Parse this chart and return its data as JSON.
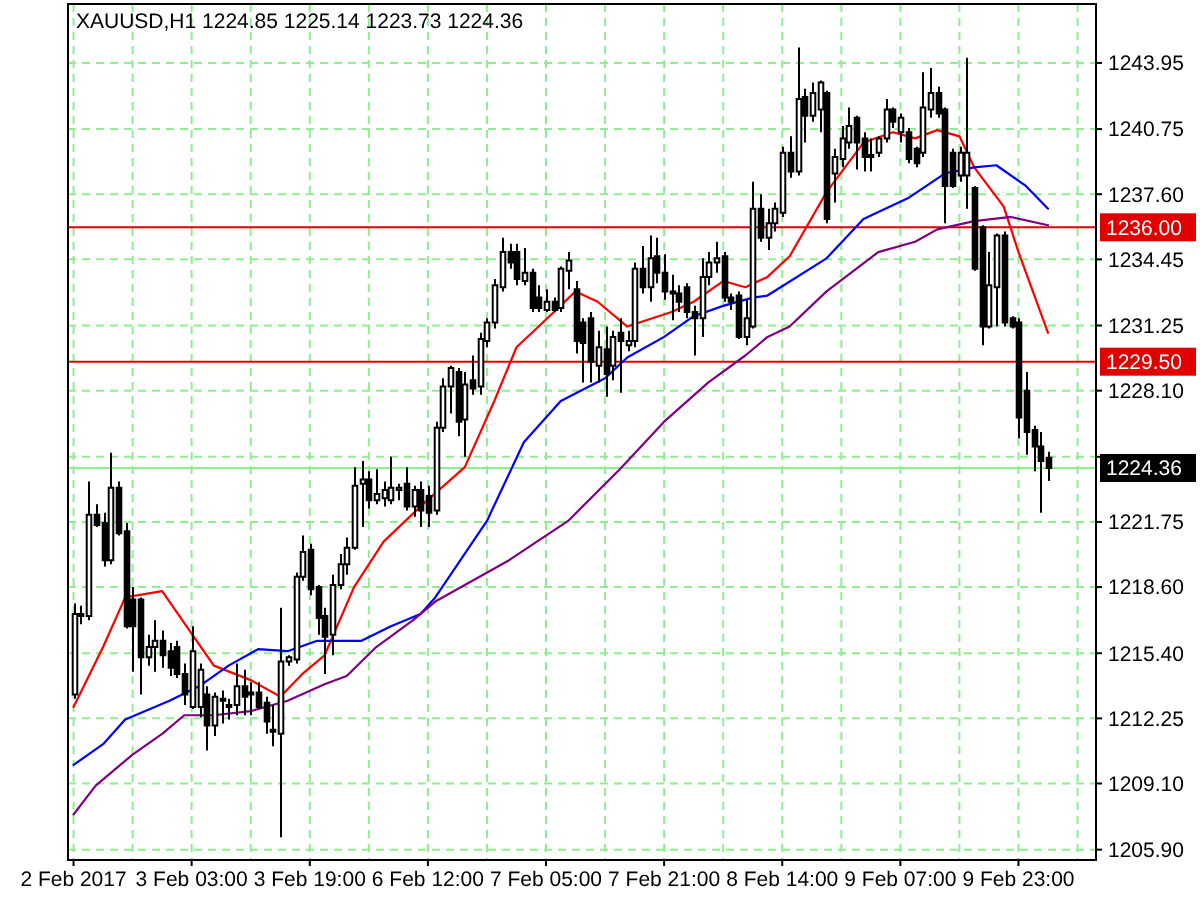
{
  "chart_data": {
    "type": "candlestick",
    "title": "XAUUSD,H1 1224.85 1225.14 1223.73 1224.36",
    "categories": [
      "2 Feb 2017",
      null,
      null,
      null,
      null,
      null,
      null,
      null,
      null,
      null,
      null,
      null,
      null,
      null,
      null,
      null,
      "3 Feb 03:00",
      null,
      null,
      null,
      null,
      null,
      null,
      null,
      null,
      null,
      null,
      null,
      null,
      null,
      null,
      null,
      "3 Feb 19:00",
      null,
      null,
      null,
      null,
      null,
      null,
      null,
      null,
      null,
      null,
      null,
      null,
      null,
      null,
      null,
      "6 Feb 12:00",
      null,
      null,
      null,
      null,
      null,
      null,
      null,
      null,
      null,
      null,
      null,
      null,
      null,
      null,
      null,
      "7 Feb 05:00",
      null,
      null,
      null,
      null,
      null,
      null,
      null,
      null,
      null,
      null,
      null,
      null,
      null,
      null,
      null,
      "7 Feb 21:00",
      null,
      null,
      null,
      null,
      null,
      null,
      null,
      null,
      null,
      null,
      null,
      null,
      null,
      null,
      null,
      "8 Feb 14:00",
      null,
      null,
      null,
      null,
      null,
      null,
      null,
      null,
      null,
      null,
      null,
      null,
      null,
      null,
      null,
      "9 Feb 07:00",
      null,
      null,
      null,
      null,
      null,
      null,
      null,
      null,
      null,
      null,
      null,
      null,
      null,
      null,
      null,
      "9 Feb 23:00",
      null,
      null,
      null,
      null
    ],
    "ylim": [
      1205.4,
      1246.8
    ],
    "yticks": [
      1243.95,
      1240.75,
      {
        "value": 1237.6,
        "label": "1237.60"
      },
      1234.45,
      1231.25,
      {
        "value": 1228.1,
        "label": "1228.10"
      },
      {
        "value": 1224.9,
        "label": null
      },
      1221.75,
      {
        "value": 1218.6,
        "label": "1218.60"
      },
      {
        "value": 1215.4,
        "label": "1215.40"
      },
      1212.25,
      {
        "value": 1209.1,
        "label": "1209.10"
      },
      {
        "value": 1205.9,
        "label": "1205.90"
      }
    ],
    "grid": true,
    "ref_lines": [
      {
        "axis": "y",
        "value": 1236.0,
        "label": "1236.00",
        "color": "#e00000"
      },
      {
        "axis": "y",
        "value": 1229.5,
        "label": "1229.50",
        "color": "#e00000"
      },
      {
        "axis": "y",
        "value": 1224.36,
        "label": "1224.36",
        "color": "#90ee90"
      }
    ],
    "series": [
      {
        "type": "line",
        "color": "#ff0000",
        "values": [
          1212.8,
          null,
          null,
          null,
          1215.7,
          null,
          null,
          1218.1,
          null,
          null,
          null,
          null,
          1218.4,
          null,
          null,
          null,
          null,
          null,
          null,
          1214.8,
          null,
          null,
          null,
          null,
          1214.1,
          null,
          null,
          null,
          1213.3,
          null,
          null,
          1214.4,
          null,
          null,
          1215.3,
          null,
          null,
          null,
          1218.6,
          null,
          null,
          null,
          1220.8,
          null,
          null,
          null,
          null,
          1222.5,
          null,
          null,
          null,
          null,
          null,
          1224.4,
          null,
          null,
          null,
          1227.6,
          null,
          null,
          1230.2,
          null,
          null,
          1231.2,
          null,
          null,
          null,
          null,
          1232.9,
          null,
          null,
          1232.4,
          null,
          null,
          null,
          1231.2,
          null,
          null,
          null,
          null,
          null,
          1231.9,
          null,
          null,
          1232.4,
          null,
          null,
          null,
          1233.4,
          null,
          null,
          1233.1,
          null,
          null,
          1233.6,
          null,
          null,
          1234.6,
          null,
          null,
          null,
          null,
          1237.7,
          null,
          null,
          null,
          null,
          1240.1,
          null,
          null,
          null,
          1240.6,
          null,
          null,
          1240.3,
          null,
          null,
          1240.7,
          null,
          null,
          1240.4,
          null,
          1238.9,
          null,
          null,
          null,
          1237.0,
          null,
          1234.8,
          null,
          null,
          null,
          1230.9
        ]
      },
      {
        "type": "line",
        "color": "#0000ff",
        "values": [
          1210.0,
          null,
          null,
          null,
          1211.0,
          null,
          null,
          1212.2,
          null,
          null,
          null,
          null,
          null,
          1213.1,
          null,
          null,
          null,
          1213.8,
          null,
          null,
          null,
          1214.8,
          null,
          null,
          1215.4,
          1215.6,
          null,
          null,
          null,
          1215.5,
          null,
          null,
          null,
          1216.0,
          null,
          null,
          null,
          null,
          null,
          1216.0,
          null,
          null,
          null,
          1216.7,
          null,
          null,
          null,
          1217.3,
          null,
          1218.1,
          null,
          null,
          null,
          null,
          null,
          null,
          1221.8,
          null,
          null,
          null,
          null,
          1225.6,
          null,
          null,
          null,
          null,
          1227.6,
          null,
          null,
          null,
          null,
          null,
          1228.7,
          null,
          null,
          1229.7,
          null,
          null,
          null,
          null,
          1230.7,
          null,
          null,
          null,
          1231.7,
          null,
          null,
          null,
          1232.2,
          null,
          null,
          null,
          1232.6,
          null,
          1232.7,
          null,
          null,
          null,
          null,
          null,
          null,
          null,
          1234.5,
          null,
          null,
          null,
          null,
          1236.4,
          null,
          null,
          null,
          null,
          null,
          1237.4,
          null,
          null,
          null,
          null,
          1238.6,
          null,
          null,
          null,
          1238.9,
          null,
          null,
          1239.0,
          null,
          null,
          null,
          1238.0,
          null,
          null,
          1236.9
        ]
      },
      {
        "type": "line",
        "color": "#800080",
        "values": [
          1207.6,
          null,
          null,
          1209.0,
          null,
          null,
          null,
          null,
          1210.5,
          null,
          null,
          null,
          1211.5,
          null,
          null,
          1212.4,
          null,
          null,
          null,
          1212.4,
          null,
          null,
          null,
          null,
          1212.6,
          null,
          1212.8,
          null,
          null,
          1213.1,
          null,
          null,
          null,
          null,
          1213.9,
          null,
          null,
          1214.3,
          null,
          null,
          null,
          1215.7,
          null,
          null,
          null,
          null,
          1217.0,
          null,
          null,
          1217.9,
          null,
          null,
          null,
          null,
          null,
          null,
          null,
          null,
          null,
          1219.9,
          null,
          null,
          null,
          null,
          null,
          null,
          null,
          1221.8,
          null,
          null,
          null,
          null,
          null,
          null,
          1224.3,
          null,
          null,
          null,
          null,
          null,
          1226.6,
          null,
          null,
          null,
          null,
          null,
          1228.5,
          null,
          null,
          null,
          null,
          1229.8,
          null,
          null,
          1230.7,
          null,
          null,
          1231.2,
          null,
          null,
          null,
          null,
          1232.9,
          null,
          null,
          null,
          null,
          null,
          null,
          1234.8,
          null,
          null,
          null,
          null,
          1235.3,
          null,
          null,
          1235.9,
          null,
          null,
          null,
          null,
          1236.3,
          null,
          null,
          null,
          null,
          1236.5,
          null,
          null,
          null,
          null,
          1236.1
        ]
      },
      {
        "type": "candlestick",
        "color": "#000000",
        "ohlc": [
          [
            1213.4,
            1217.8,
            1213.2,
            1217.3
          ],
          [
            1217.2,
            1217.7,
            1216.8,
            1217.3
          ],
          [
            1217.2,
            1223.7,
            1217.0,
            1222.1
          ],
          [
            1222.1,
            1222.6,
            1221.5,
            1221.6
          ],
          [
            1221.7,
            1222.2,
            1219.6,
            1219.9
          ],
          [
            1219.9,
            1225.1,
            1219.7,
            1223.4
          ],
          [
            1223.4,
            1223.7,
            1221.1,
            1221.2
          ],
          [
            1221.3,
            1221.7,
            1216.6,
            1216.7
          ],
          [
            1218.0,
            1218.6,
            1214.5,
            1216.7
          ],
          [
            1218.0,
            1218.1,
            1213.4,
            1215.2
          ],
          [
            1215.2,
            1216.3,
            1214.8,
            1215.7
          ],
          [
            1215.7,
            1217.0,
            1214.5,
            1216.0
          ],
          [
            1216.0,
            1216.5,
            1214.7,
            1215.3
          ],
          [
            1215.5,
            1215.9,
            1214.3,
            1214.7
          ],
          [
            1215.7,
            1216.0,
            1214.2,
            1214.4
          ],
          [
            1214.4,
            1214.9,
            1212.9,
            1213.4
          ],
          [
            1212.8,
            1216.7,
            1212.7,
            1215.5
          ],
          [
            1212.8,
            1214.9,
            1212.3,
            1214.6
          ],
          [
            1213.4,
            1213.8,
            1210.7,
            1211.9
          ],
          [
            1211.9,
            1213.5,
            1211.4,
            1213.3
          ],
          [
            1213.1,
            1213.6,
            1212.0,
            1213.2
          ],
          [
            1212.9,
            1213.2,
            1212.2,
            1212.8
          ],
          [
            1212.9,
            1214.9,
            1212.4,
            1213.8
          ],
          [
            1213.8,
            1214.6,
            1212.4,
            1213.3
          ],
          [
            1213.5,
            1214.0,
            1212.4,
            1213.4
          ],
          [
            1213.5,
            1214.0,
            1212.7,
            1212.8
          ],
          [
            1213.0,
            1213.3,
            1211.5,
            1212.1
          ],
          [
            1211.7,
            1212.9,
            1210.9,
            1211.6
          ],
          [
            1211.5,
            1217.6,
            1206.5,
            1215.0
          ],
          [
            1215.0,
            1215.3,
            1214.8,
            1215.2
          ],
          [
            1215.1,
            1219.3,
            1214.9,
            1219.1
          ],
          [
            1219.1,
            1221.1,
            1218.9,
            1220.3
          ],
          [
            1220.4,
            1220.7,
            1218.2,
            1218.5
          ],
          [
            1218.6,
            1218.7,
            1216.3,
            1217.1
          ],
          [
            1217.2,
            1217.6,
            1214.4,
            1216.2
          ],
          [
            1216.3,
            1219.2,
            1215.3,
            1218.7
          ],
          [
            1218.7,
            1220.2,
            1218.5,
            1219.7
          ],
          [
            1219.7,
            1221.0,
            1219.2,
            1220.5
          ],
          [
            1220.5,
            1224.4,
            1220.4,
            1223.5
          ],
          [
            1223.6,
            1224.7,
            1221.5,
            1223.8
          ],
          [
            1223.8,
            1224.2,
            1222.4,
            1222.8
          ],
          [
            1222.8,
            1224.3,
            1222.6,
            1223.1
          ],
          [
            1222.9,
            1223.7,
            1222.5,
            1223.3
          ],
          [
            1222.8,
            1224.9,
            1222.6,
            1223.4
          ],
          [
            1223.3,
            1223.6,
            1222.8,
            1223.4
          ],
          [
            1223.6,
            1224.4,
            1222.3,
            1222.5
          ],
          [
            1222.5,
            1223.5,
            1222.0,
            1223.3
          ],
          [
            1223.3,
            1223.7,
            1221.5,
            1222.3
          ],
          [
            1223.0,
            1223.5,
            1221.5,
            1222.2
          ],
          [
            1222.3,
            1226.6,
            1222.1,
            1226.3
          ],
          [
            1226.3,
            1228.7,
            1226.1,
            1228.3
          ],
          [
            1228.3,
            1229.3,
            1227.0,
            1229.2
          ],
          [
            1229.0,
            1229.2,
            1225.9,
            1226.6
          ],
          [
            1226.7,
            1229.0,
            1224.9,
            1228.4
          ],
          [
            1228.6,
            1229.8,
            1227.9,
            1228.2
          ],
          [
            1228.3,
            1230.9,
            1227.9,
            1230.6
          ],
          [
            1230.5,
            1231.6,
            1230.2,
            1231.4
          ],
          [
            1231.4,
            1233.5,
            1231.1,
            1233.2
          ],
          [
            1233.1,
            1235.5,
            1232.9,
            1234.8
          ],
          [
            1234.8,
            1235.2,
            1234.0,
            1234.3
          ],
          [
            1234.8,
            1235.2,
            1233.2,
            1233.5
          ],
          [
            1233.4,
            1235.0,
            1233.2,
            1233.8
          ],
          [
            1233.8,
            1234.0,
            1231.9,
            1232.1
          ],
          [
            1232.6,
            1233.2,
            1231.9,
            1232.1
          ],
          [
            1232.0,
            1233.0,
            1231.9,
            1232.4
          ],
          [
            1232.4,
            1232.6,
            1231.9,
            1232.0
          ],
          [
            1232.1,
            1234.1,
            1231.9,
            1234.0
          ],
          [
            1233.9,
            1234.8,
            1233.0,
            1234.4
          ],
          [
            1233.0,
            1233.4,
            1229.9,
            1230.5
          ],
          [
            1231.4,
            1231.6,
            1228.5,
            1230.4
          ],
          [
            1231.6,
            1231.9,
            1228.5,
            1229.5
          ],
          [
            1229.3,
            1231.0,
            1228.5,
            1230.2
          ],
          [
            1230.1,
            1231.2,
            1227.8,
            1228.9
          ],
          [
            1229.3,
            1231.0,
            1228.6,
            1230.7
          ],
          [
            1230.9,
            1231.6,
            1228.0,
            1230.5
          ],
          [
            1230.3,
            1231.0,
            1230.0,
            1230.5
          ],
          [
            1230.5,
            1234.3,
            1230.2,
            1234.0
          ],
          [
            1234.0,
            1235.1,
            1232.8,
            1233.1
          ],
          [
            1233.1,
            1235.6,
            1232.4,
            1234.5
          ],
          [
            1234.6,
            1235.5,
            1233.3,
            1233.8
          ],
          [
            1233.8,
            1234.7,
            1232.5,
            1232.9
          ],
          [
            1232.8,
            1233.7,
            1231.5,
            1232.9
          ],
          [
            1232.8,
            1233.2,
            1231.9,
            1232.4
          ],
          [
            1233.1,
            1233.3,
            1231.6,
            1231.9
          ],
          [
            1231.9,
            1232.2,
            1229.8,
            1231.6
          ],
          [
            1231.6,
            1234.5,
            1230.7,
            1233.6
          ],
          [
            1233.6,
            1234.8,
            1233.2,
            1234.3
          ],
          [
            1234.3,
            1235.3,
            1233.8,
            1234.5
          ],
          [
            1234.6,
            1234.8,
            1232.4,
            1232.6
          ],
          [
            1232.6,
            1232.8,
            1232.0,
            1232.4
          ],
          [
            1232.7,
            1232.9,
            1230.6,
            1230.7
          ],
          [
            1230.7,
            1232.5,
            1230.3,
            1231.6
          ],
          [
            1231.2,
            1238.2,
            1231.1,
            1236.9
          ],
          [
            1236.9,
            1237.6,
            1235.3,
            1235.5
          ],
          [
            1235.5,
            1236.9,
            1234.9,
            1236.2
          ],
          [
            1236.2,
            1237.2,
            1235.8,
            1236.9
          ],
          [
            1236.7,
            1239.9,
            1236.5,
            1239.6
          ],
          [
            1239.6,
            1240.4,
            1238.4,
            1238.7
          ],
          [
            1238.7,
            1244.7,
            1238.5,
            1242.2
          ],
          [
            1242.3,
            1242.7,
            1240.1,
            1241.4
          ],
          [
            1241.4,
            1243.0,
            1241.1,
            1242.5
          ],
          [
            1241.7,
            1243.1,
            1240.6,
            1243.0
          ],
          [
            1242.5,
            1242.6,
            1236.2,
            1236.4
          ],
          [
            1238.6,
            1239.8,
            1237.2,
            1239.4
          ],
          [
            1239.3,
            1240.9,
            1238.9,
            1240.3
          ],
          [
            1240.1,
            1241.8,
            1239.8,
            1240.9
          ],
          [
            1241.3,
            1241.4,
            1238.8,
            1240.1
          ],
          [
            1240.3,
            1240.6,
            1238.7,
            1239.4
          ],
          [
            1239.5,
            1240.3,
            1238.7,
            1239.4
          ],
          [
            1239.6,
            1240.4,
            1239.4,
            1240.3
          ],
          [
            1240.3,
            1242.2,
            1240.1,
            1241.7
          ],
          [
            1241.7,
            1241.8,
            1240.8,
            1241.1
          ],
          [
            1240.6,
            1241.5,
            1240.1,
            1241.3
          ],
          [
            1240.6,
            1240.8,
            1239.1,
            1239.3
          ],
          [
            1239.8,
            1239.9,
            1238.9,
            1239.1
          ],
          [
            1239.6,
            1243.5,
            1239.4,
            1241.8
          ],
          [
            1241.7,
            1243.7,
            1241.3,
            1242.5
          ],
          [
            1242.5,
            1242.8,
            1241.3,
            1241.5
          ],
          [
            1241.7,
            1241.8,
            1236.2,
            1238.0
          ],
          [
            1239.6,
            1239.8,
            1237.9,
            1238.0
          ],
          [
            1238.5,
            1239.9,
            1238.2,
            1239.6
          ],
          [
            1238.5,
            1244.2,
            1236.9,
            1239.6
          ],
          [
            1237.9,
            1238.0,
            1233.9,
            1234.0
          ],
          [
            1236.0,
            1236.1,
            1230.3,
            1231.2
          ],
          [
            1231.2,
            1234.8,
            1231.1,
            1233.2
          ],
          [
            1233.1,
            1235.7,
            1231.2,
            1235.6
          ],
          [
            1235.6,
            1235.8,
            1231.2,
            1231.4
          ],
          [
            1231.6,
            1231.7,
            1231.1,
            1231.2
          ],
          [
            1231.4,
            1231.6,
            1225.8,
            1226.8
          ],
          [
            1228.1,
            1229.0,
            1225.0,
            1226.1
          ],
          [
            1226.2,
            1226.4,
            1224.2,
            1225.4
          ],
          [
            1225.4,
            1226.1,
            1222.2,
            1224.7
          ],
          [
            1224.85,
            1225.14,
            1223.73,
            1224.36
          ]
        ]
      }
    ]
  }
}
